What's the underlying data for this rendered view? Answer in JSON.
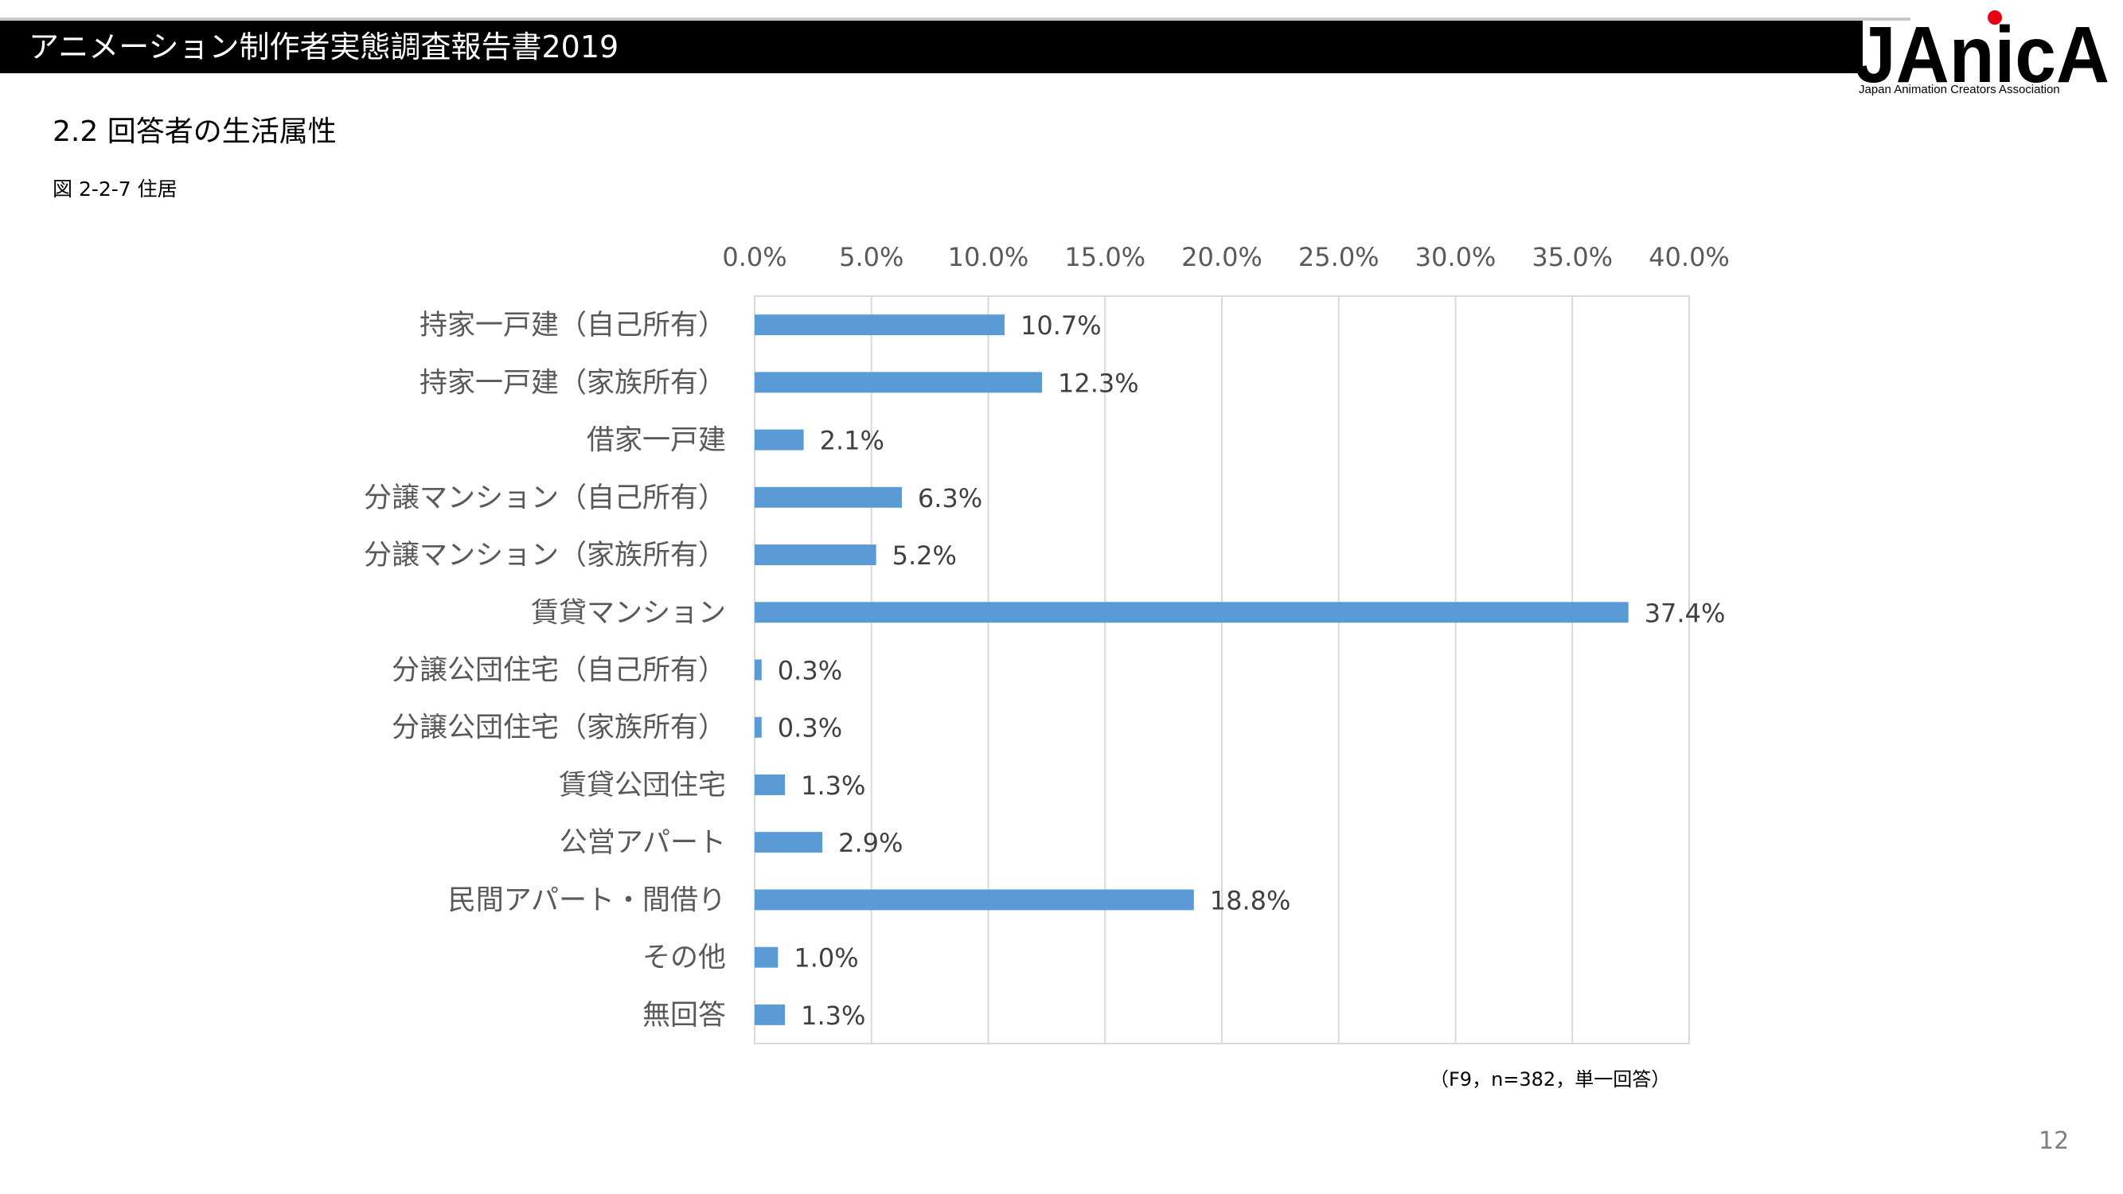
{
  "header": {
    "title": "アニメーション制作者実態調査報告書2019",
    "logo_text": "JAnicA",
    "logo_subtitle": "Japan Animation Creators Association"
  },
  "section": {
    "title": "2.2  回答者の生活属性"
  },
  "figure": {
    "caption": "図 2-2-7  住居"
  },
  "colors": {
    "bar": "#5b9bd5",
    "grid": "#d9d9d9",
    "label": "#595959",
    "logo_accent": "#e60012"
  },
  "chart_data": {
    "type": "bar",
    "orientation": "horizontal",
    "categories": [
      "持家一戸建（自己所有）",
      "持家一戸建（家族所有）",
      "借家一戸建",
      "分譲マンション（自己所有）",
      "分譲マンション（家族所有）",
      "賃貸マンション",
      "分譲公団住宅（自己所有）",
      "分譲公団住宅（家族所有）",
      "賃貸公団住宅",
      "公営アパート",
      "民間アパート・間借り",
      "その他",
      "無回答"
    ],
    "values": [
      10.7,
      12.3,
      2.1,
      6.3,
      5.2,
      37.4,
      0.3,
      0.3,
      1.3,
      2.9,
      18.8,
      1.0,
      1.3
    ],
    "data_labels": [
      "10.7%",
      "12.3%",
      "2.1%",
      "6.3%",
      "5.2%",
      "37.4%",
      "0.3%",
      "0.3%",
      "1.3%",
      "2.9%",
      "18.8%",
      "1.0%",
      "1.3%"
    ],
    "x_ticks": [
      0,
      5,
      10,
      15,
      20,
      25,
      30,
      35,
      40
    ],
    "x_tick_labels": [
      "0.0%",
      "5.0%",
      "10.0%",
      "15.0%",
      "20.0%",
      "25.0%",
      "30.0%",
      "35.0%",
      "40.0%"
    ],
    "xlim": [
      0,
      40
    ],
    "axis_position": "top",
    "grid": true,
    "legend": false,
    "note": "（F9，n=382，単一回答）"
  },
  "page": {
    "number": "12"
  }
}
